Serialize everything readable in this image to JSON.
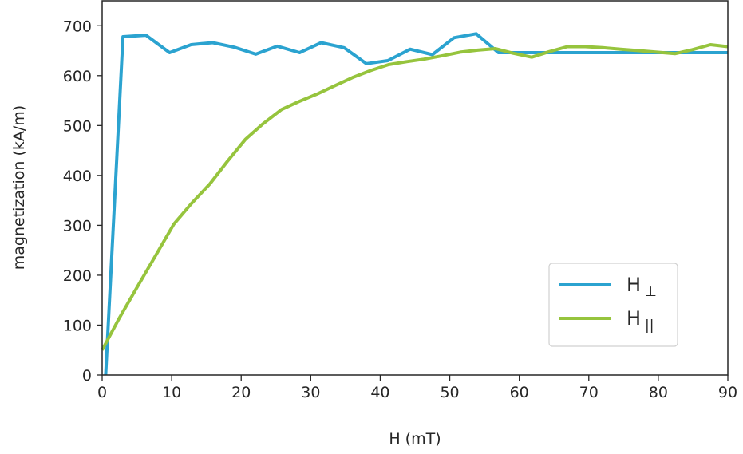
{
  "chart_data": {
    "type": "line",
    "xlabel": "H (mT)",
    "ylabel": "magnetization (kA/m)",
    "xlim": [
      0,
      90
    ],
    "ylim": [
      0,
      750
    ],
    "xticks": [
      "0",
      "10",
      "20",
      "30",
      "40",
      "50",
      "60",
      "70",
      "80",
      "90"
    ],
    "yticks": [
      "0",
      "100",
      "200",
      "300",
      "400",
      "500",
      "600",
      "700"
    ],
    "grid": false,
    "legend_position": "lower-right",
    "series": [
      {
        "name": "H⊥",
        "label_main": "H",
        "label_sub": "⊥",
        "color": "#2ba3d0",
        "x": [
          0.5,
          3.0,
          6.3,
          9.7,
          12.8,
          15.9,
          19.0,
          22.1,
          25.2,
          28.4,
          31.5,
          34.8,
          38.0,
          41.1,
          44.3,
          47.5,
          50.6,
          53.8,
          57.0,
          60.0,
          65.0,
          70.0,
          75.0,
          80.0,
          85.0,
          90.0
        ],
        "y": [
          0,
          678,
          681,
          646,
          662,
          666,
          657,
          643,
          659,
          646,
          666,
          656,
          624,
          630,
          653,
          642,
          676,
          684,
          646,
          646,
          646,
          646,
          646,
          646,
          646,
          646
        ]
      },
      {
        "name": "H||",
        "label_main": "H",
        "label_sub": "||",
        "color": "#96c43d",
        "x": [
          0,
          2.5,
          5.2,
          7.8,
          10.3,
          12.8,
          15.5,
          18.0,
          20.6,
          23.0,
          25.8,
          28.3,
          30.9,
          33.5,
          36.0,
          38.6,
          41.2,
          43.8,
          46.3,
          49.0,
          51.5,
          54.0,
          56.6,
          59.1,
          61.8,
          64.3,
          66.9,
          69.5,
          72.0,
          74.6,
          77.2,
          79.8,
          82.4,
          84.9,
          87.5,
          90.0
        ],
        "y": [
          50,
          115,
          180,
          242,
          302,
          343,
          383,
          428,
          472,
          502,
          532,
          548,
          563,
          580,
          596,
          610,
          622,
          628,
          633,
          640,
          647,
          651,
          654,
          645,
          637,
          648,
          658,
          658,
          656,
          653,
          650,
          647,
          644,
          652,
          662,
          658
        ]
      }
    ]
  }
}
